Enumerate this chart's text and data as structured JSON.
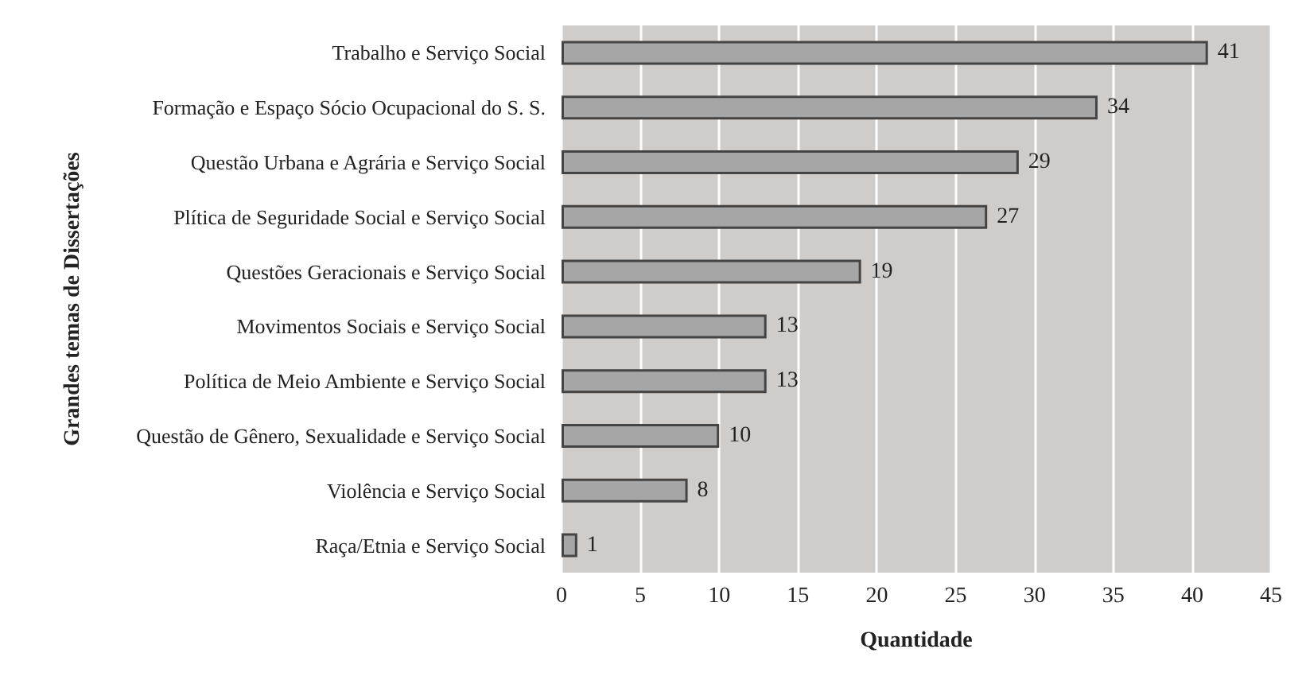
{
  "chart_data": {
    "type": "bar",
    "orientation": "horizontal",
    "ylabel": "Grandes temas de Dissertações",
    "xlabel": "Quantidade",
    "categories": [
      "Trabalho e Serviço Social",
      "Formação e Espaço Sócio Ocupacional do S. S.",
      "Questão Urbana e Agrária e Serviço Social",
      "Plítica de Seguridade Social e Serviço Social",
      "Questões Geracionais e Serviço Social",
      "Movimentos Sociais e Serviço Social",
      "Política de Meio Ambiente e Serviço Social",
      "Questão de Gênero, Sexualidade e Serviço Social",
      "Violência e Serviço Social",
      "Raça/Etnia e Serviço Social"
    ],
    "values": [
      41,
      34,
      29,
      27,
      19,
      13,
      13,
      10,
      8,
      1
    ],
    "color": "#a6a6a6",
    "data_labels": true,
    "grid": "x",
    "xlim": [
      0,
      45
    ],
    "xticks": [
      0,
      5,
      10,
      15,
      20,
      25,
      30,
      35,
      40,
      45
    ]
  }
}
